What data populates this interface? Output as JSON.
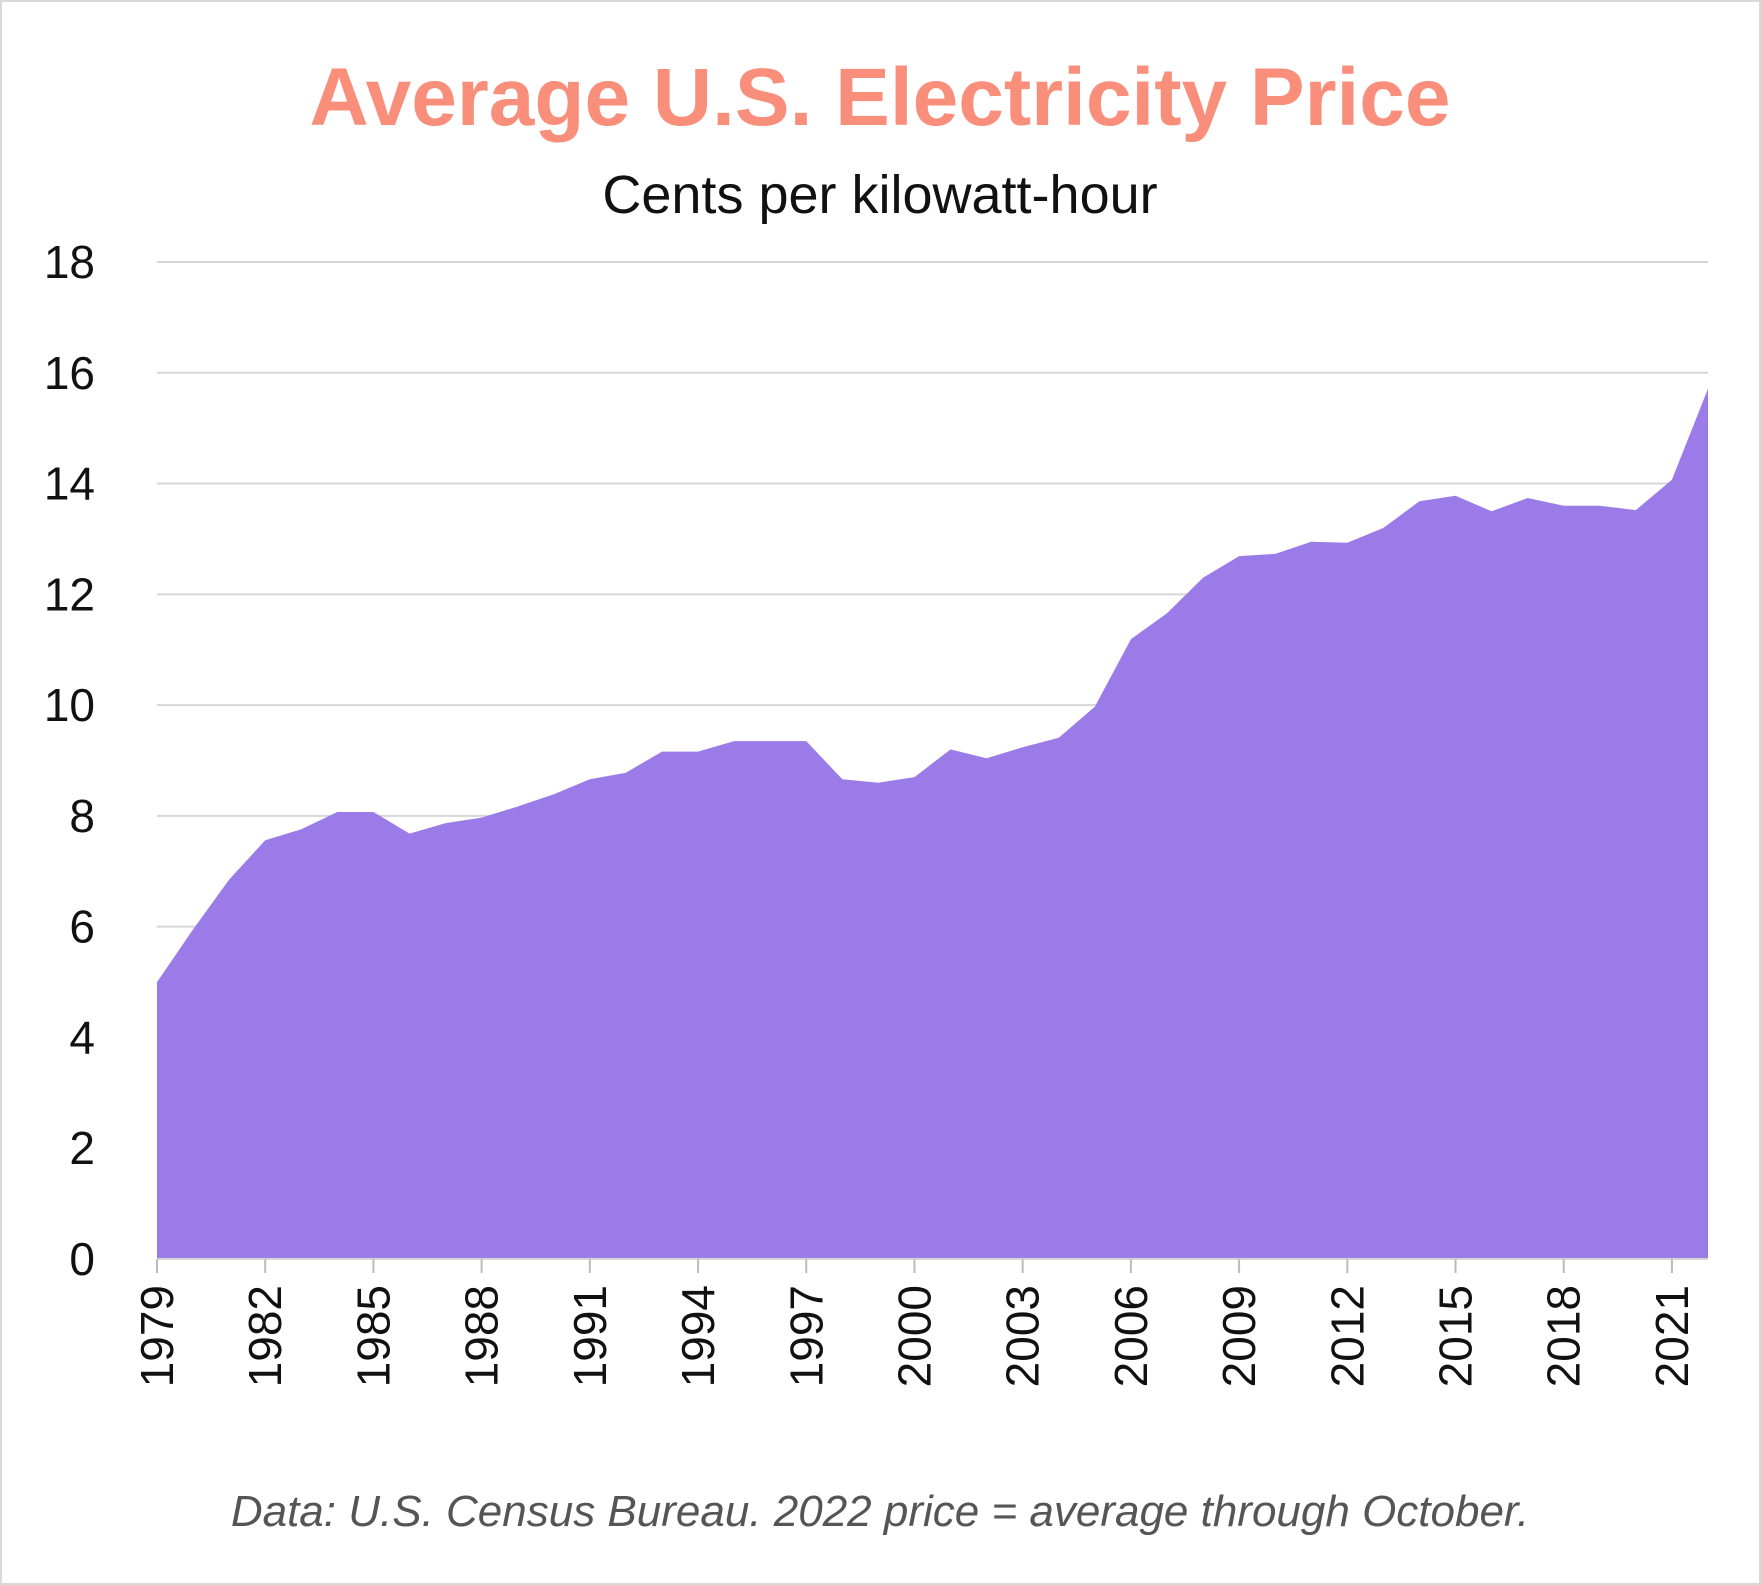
{
  "chart_data": {
    "type": "area",
    "title": "Average U.S. Electricity Price",
    "subtitle": "Cents per kilowatt-hour",
    "source_note": "Data: U.S. Census Bureau. 2022 price = average through October.",
    "xlabel": "",
    "ylabel": "",
    "ylim": [
      0,
      18
    ],
    "yticks": [
      0,
      2,
      4,
      6,
      8,
      10,
      12,
      14,
      16,
      18
    ],
    "xticks": [
      1979,
      1982,
      1985,
      1988,
      1991,
      1994,
      1997,
      2000,
      2003,
      2006,
      2009,
      2012,
      2015,
      2018,
      2021
    ],
    "grid": "horizontal",
    "fill_color": "#9b7be8",
    "title_color": "#f98e7a",
    "x": [
      1979,
      1980,
      1981,
      1982,
      1983,
      1984,
      1985,
      1986,
      1987,
      1988,
      1989,
      1990,
      1991,
      1992,
      1993,
      1994,
      1995,
      1996,
      1997,
      1998,
      1999,
      2000,
      2001,
      2002,
      2003,
      2004,
      2005,
      2006,
      2007,
      2008,
      2009,
      2010,
      2011,
      2012,
      2013,
      2014,
      2015,
      2016,
      2017,
      2018,
      2019,
      2020,
      2021,
      2022
    ],
    "values": [
      5.0,
      5.95,
      6.85,
      7.56,
      7.76,
      8.07,
      8.07,
      7.68,
      7.87,
      7.97,
      8.17,
      8.39,
      8.66,
      8.78,
      9.16,
      9.16,
      9.35,
      9.35,
      9.35,
      8.66,
      8.6,
      8.7,
      9.2,
      9.04,
      9.24,
      9.41,
      9.97,
      11.19,
      11.66,
      12.3,
      12.69,
      12.73,
      12.95,
      12.93,
      13.2,
      13.68,
      13.78,
      13.5,
      13.74,
      13.6,
      13.6,
      13.52,
      14.07,
      15.71
    ]
  }
}
